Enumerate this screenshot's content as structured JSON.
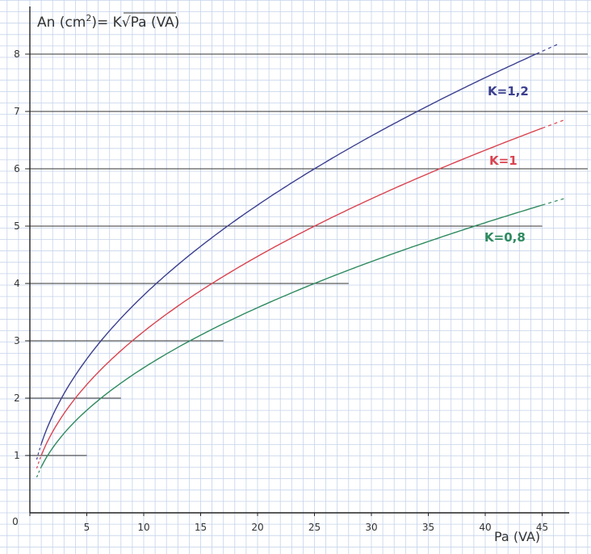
{
  "chart_data": {
    "type": "line",
    "title": "An (cm²) = K√Pa (VA)",
    "title_parts": {
      "lhs": "An (cm",
      "sup": "2",
      "rhs_prefix": ")= K",
      "radicand": "Pa (VA)"
    },
    "xlabel": "Pa (VA)",
    "ylabel": "",
    "xlim": [
      0,
      47
    ],
    "ylim": [
      0,
      8.3
    ],
    "x_ticks": [
      0,
      5,
      10,
      15,
      20,
      25,
      30,
      35,
      40,
      45
    ],
    "y_ticks": [
      1,
      2,
      3,
      4,
      5,
      6,
      7,
      8
    ],
    "grid": true,
    "legend": "inline labels at right end of curves",
    "series": [
      {
        "name": "K=1,2",
        "k": 1.2,
        "color": "#3b3f8f",
        "x": [
          1,
          2,
          5,
          10,
          15,
          20,
          25,
          30,
          35,
          40,
          44.5
        ],
        "y": [
          1.2,
          1.7,
          2.68,
          3.79,
          4.65,
          5.37,
          6.0,
          6.57,
          7.1,
          7.59,
          8.0
        ]
      },
      {
        "name": "K=1",
        "k": 1.0,
        "color": "#d9434f",
        "x": [
          1,
          2,
          5,
          10,
          15,
          20,
          25,
          30,
          35,
          40,
          45
        ],
        "y": [
          1.0,
          1.41,
          2.24,
          3.16,
          3.87,
          4.47,
          5.0,
          5.48,
          5.92,
          6.32,
          6.71
        ]
      },
      {
        "name": "K=0,8",
        "k": 0.8,
        "color": "#2e8a5e",
        "x": [
          1,
          2,
          5,
          10,
          15,
          20,
          25,
          30,
          35,
          40,
          45
        ],
        "y": [
          0.8,
          1.13,
          1.79,
          2.53,
          3.1,
          3.58,
          4.0,
          4.38,
          4.73,
          5.06,
          5.37
        ]
      }
    ]
  }
}
